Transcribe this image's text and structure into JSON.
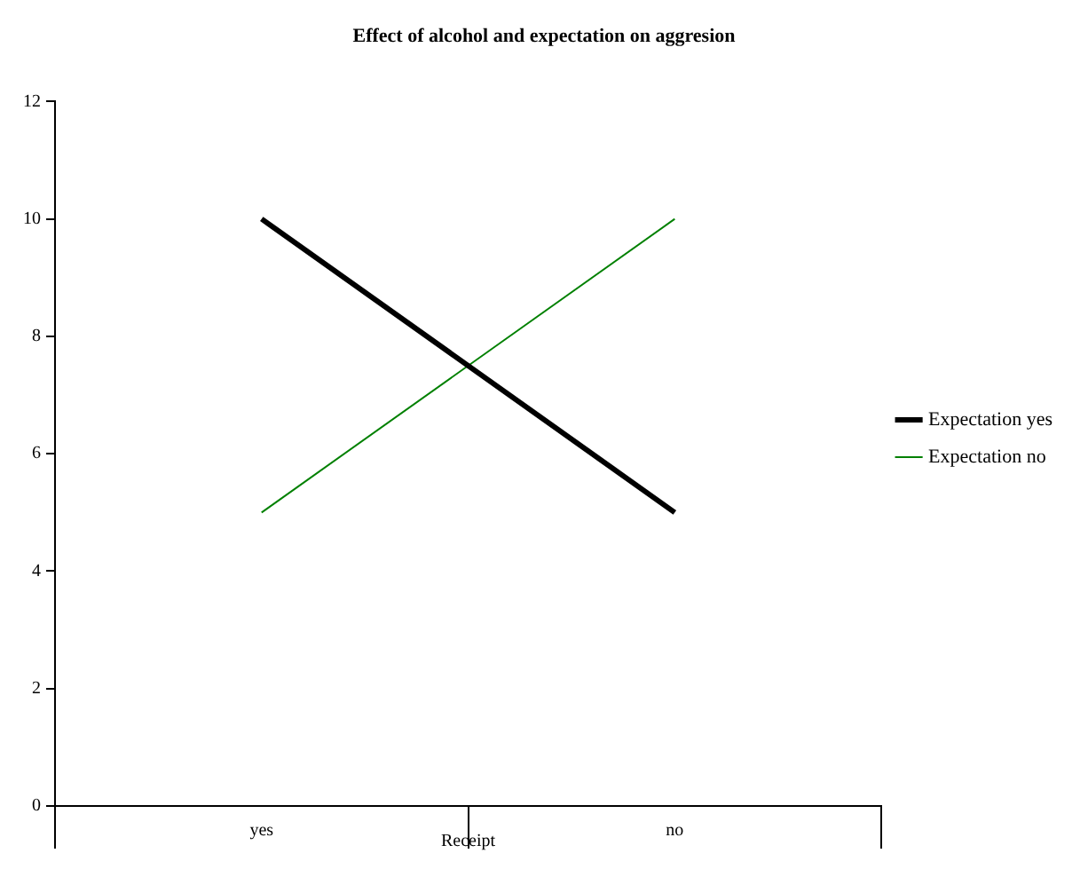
{
  "chart_data": {
    "type": "line",
    "title": "Effect of alcohol and expectation on aggresion",
    "xlabel": "Receipt",
    "categories": [
      "yes",
      "no"
    ],
    "series": [
      {
        "name": "Expectation yes",
        "color": "#000000",
        "values": [
          10,
          5
        ]
      },
      {
        "name": "Expectation no",
        "color": "#008000",
        "values": [
          5,
          10
        ]
      }
    ],
    "ylim": [
      0,
      12
    ],
    "yticks": [
      0,
      2,
      4,
      6,
      8,
      10,
      12
    ],
    "grid": false,
    "legend": "right",
    "marker": "none",
    "line_style": "solid"
  }
}
